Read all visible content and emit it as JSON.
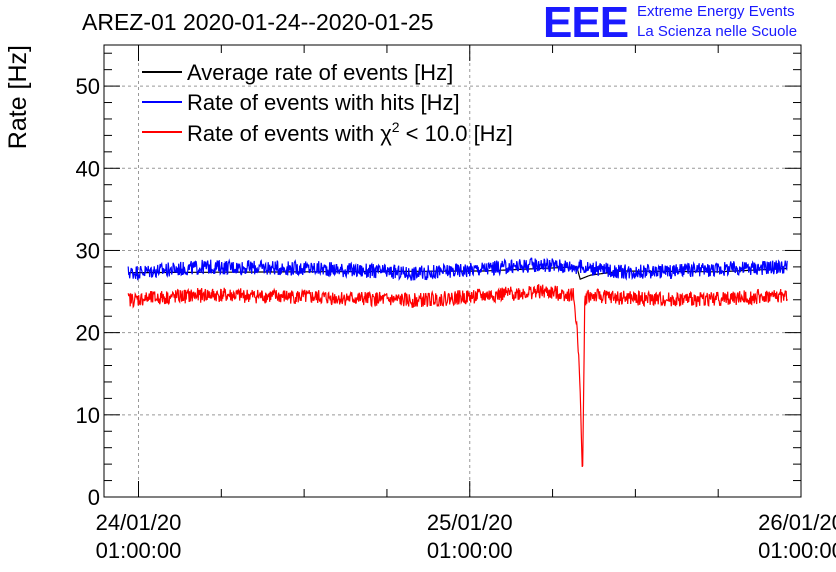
{
  "chart_data": {
    "type": "line",
    "title": "AREZ-01 2020-01-24--2020-01-25",
    "ylabel": "Rate [Hz]",
    "ylim": [
      0,
      55
    ],
    "yticks": [
      0,
      10,
      20,
      30,
      40,
      50
    ],
    "xlim": [
      "2020-01-23 22:30:00",
      "2020-01-26 01:00:00"
    ],
    "xticks": [
      {
        "line1": "24/01/20",
        "line2": "01:00:00",
        "t": "2020-01-24 01:00:00"
      },
      {
        "line1": "25/01/20",
        "line2": "01:00:00",
        "t": "2020-01-25 01:00:00"
      },
      {
        "line1": "26/01/20",
        "line2": "01:00:00",
        "t": "2020-01-26 01:00:00"
      }
    ],
    "grid": true,
    "legend_position": "top-left",
    "series": [
      {
        "name": "Average rate of events [Hz]",
        "color": "#000000",
        "x": [
          "2020-01-24 00:15",
          "2020-01-25 02:00",
          "2020-01-25 08:45",
          "2020-01-25 09:00",
          "2020-01-25 09:45",
          "2020-01-25 12:00",
          "2020-01-25 19:00",
          "2020-01-26 00:00"
        ],
        "values": [
          27.3,
          27.5,
          28.0,
          26.5,
          27.0,
          27.5,
          27.4,
          27.8
        ]
      },
      {
        "name": "Rate of events with hits [Hz]",
        "color": "#0000ff",
        "x": [
          "2020-01-24 00:15",
          "2020-01-24 06:00",
          "2020-01-24 14:00",
          "2020-01-24 21:00",
          "2020-01-25 03:00",
          "2020-01-25 06:00",
          "2020-01-25 09:00",
          "2020-01-25 12:00",
          "2020-01-25 16:00",
          "2020-01-25 20:00",
          "2020-01-26 00:00"
        ],
        "values": [
          27.3,
          28.0,
          27.8,
          27.2,
          27.9,
          28.3,
          28.0,
          27.4,
          27.5,
          27.8,
          28.0
        ]
      },
      {
        "name": "Rate of events with χ² < 10.0 [Hz]",
        "color": "#ff0000",
        "x": [
          "2020-01-24 00:15",
          "2020-01-24 06:00",
          "2020-01-24 14:00",
          "2020-01-24 21:00",
          "2020-01-25 03:00",
          "2020-01-25 06:00",
          "2020-01-25 08:30",
          "2020-01-25 08:45",
          "2020-01-25 09:00",
          "2020-01-25 09:10",
          "2020-01-25 09:20",
          "2020-01-25 09:35",
          "2020-01-25 12:00",
          "2020-01-25 16:00",
          "2020-01-25 20:00",
          "2020-01-26 00:00"
        ],
        "values": [
          24.0,
          24.6,
          24.3,
          23.9,
          24.6,
          25.0,
          24.6,
          21.0,
          13.0,
          2.0,
          24.0,
          24.5,
          24.2,
          24.0,
          24.2,
          24.5
        ]
      }
    ]
  },
  "legend": {
    "average_label": "Average rate of events [Hz]",
    "hits_label": "Rate of events with hits [Hz]",
    "chi2_prefix": "Rate of events with χ",
    "chi2_sup": "2",
    "chi2_suffix": " < 10.0 [Hz]"
  },
  "logo": {
    "letters": "EEE",
    "line1": "Extreme Energy Events",
    "line2": "La Scienza nelle Scuole"
  }
}
